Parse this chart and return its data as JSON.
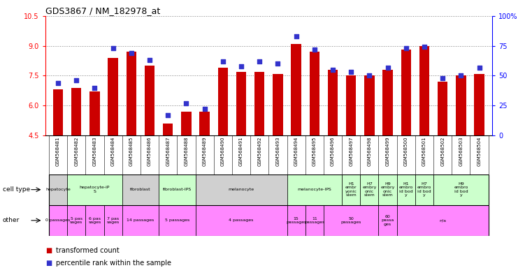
{
  "title": "GDS3867 / NM_182978_at",
  "samples": [
    "GSM568481",
    "GSM568482",
    "GSM568483",
    "GSM568484",
    "GSM568485",
    "GSM568486",
    "GSM568487",
    "GSM568488",
    "GSM568489",
    "GSM568490",
    "GSM568491",
    "GSM568492",
    "GSM568493",
    "GSM568494",
    "GSM568495",
    "GSM568496",
    "GSM568497",
    "GSM568498",
    "GSM568499",
    "GSM568500",
    "GSM568501",
    "GSM568502",
    "GSM568503",
    "GSM568504"
  ],
  "transformed_count": [
    6.8,
    6.9,
    6.7,
    8.4,
    8.7,
    8.0,
    5.1,
    5.7,
    5.7,
    7.9,
    7.7,
    7.7,
    7.6,
    9.1,
    8.7,
    7.8,
    7.5,
    7.5,
    7.8,
    8.8,
    9.0,
    7.2,
    7.5,
    7.6
  ],
  "percentile_rank": [
    44,
    46,
    40,
    73,
    69,
    63,
    17,
    27,
    22,
    62,
    58,
    62,
    60,
    83,
    72,
    55,
    53,
    50,
    57,
    73,
    74,
    48,
    50,
    57
  ],
  "ylim_left": [
    4.5,
    10.5
  ],
  "ylim_right": [
    0,
    100
  ],
  "yticks_left": [
    4.5,
    6.0,
    7.5,
    9.0,
    10.5
  ],
  "yticks_right": [
    0,
    25,
    50,
    75,
    100
  ],
  "ytick_labels_right": [
    "0",
    "25",
    "50",
    "75",
    "100%"
  ],
  "bar_color": "#cc0000",
  "dot_color": "#3333cc",
  "cell_type_row_label": "cell type",
  "other_row_label": "other",
  "legend_bar": "transformed count",
  "legend_dot": "percentile rank within the sample",
  "n_samples": 24,
  "cell_groups_raw": [
    {
      "label": "hepatocyte",
      "indices": [
        0
      ],
      "color": "#d0d0d0"
    },
    {
      "label": "hepatocyte-iP\nS",
      "indices": [
        1,
        2,
        3
      ],
      "color": "#ccffcc"
    },
    {
      "label": "fibroblast",
      "indices": [
        4,
        5
      ],
      "color": "#d0d0d0"
    },
    {
      "label": "fibroblast-IPS",
      "indices": [
        6,
        7
      ],
      "color": "#ccffcc"
    },
    {
      "label": "melanocyte",
      "indices": [
        8,
        9,
        10,
        11,
        12
      ],
      "color": "#d0d0d0"
    },
    {
      "label": "melanocyte-IPS",
      "indices": [
        13,
        14,
        15
      ],
      "color": "#ccffcc"
    },
    {
      "label": "H1\nembr\nyonic\nstem",
      "indices": [
        16
      ],
      "color": "#ccffcc"
    },
    {
      "label": "H7\nembry\nonic\nstem",
      "indices": [
        17
      ],
      "color": "#ccffcc"
    },
    {
      "label": "H9\nembry\nonic\nstem",
      "indices": [
        18
      ],
      "color": "#ccffcc"
    },
    {
      "label": "H1\nembro\nid bod\ny",
      "indices": [
        19
      ],
      "color": "#ccffcc"
    },
    {
      "label": "H7\nembro\nid bod\ny",
      "indices": [
        20
      ],
      "color": "#ccffcc"
    },
    {
      "label": "H9\nembro\nid bod\ny",
      "indices": [
        21,
        22,
        23
      ],
      "color": "#ccffcc"
    }
  ],
  "other_groups_raw": [
    {
      "label": "0 passages",
      "indices": [
        0
      ],
      "color": "#ff88ff"
    },
    {
      "label": "5 pas\nsages",
      "indices": [
        1
      ],
      "color": "#ff88ff"
    },
    {
      "label": "6 pas\nsages",
      "indices": [
        2
      ],
      "color": "#ff88ff"
    },
    {
      "label": "7 pas\nsages",
      "indices": [
        3
      ],
      "color": "#ff88ff"
    },
    {
      "label": "14 passages",
      "indices": [
        4,
        5
      ],
      "color": "#ff88ff"
    },
    {
      "label": "5 passages",
      "indices": [
        6,
        7
      ],
      "color": "#ff88ff"
    },
    {
      "label": "4 passages",
      "indices": [
        8,
        9,
        10,
        11,
        12
      ],
      "color": "#ff88ff"
    },
    {
      "label": "15\npassages",
      "indices": [
        13
      ],
      "color": "#ff88ff"
    },
    {
      "label": "11\npassages",
      "indices": [
        14
      ],
      "color": "#ff88ff"
    },
    {
      "label": "50\npassages",
      "indices": [
        15,
        16,
        17
      ],
      "color": "#ff88ff"
    },
    {
      "label": "60\npassa\nges",
      "indices": [
        18
      ],
      "color": "#ff88ff"
    },
    {
      "label": "n/a",
      "indices": [
        19,
        20,
        21,
        22,
        23
      ],
      "color": "#ff88ff"
    }
  ]
}
